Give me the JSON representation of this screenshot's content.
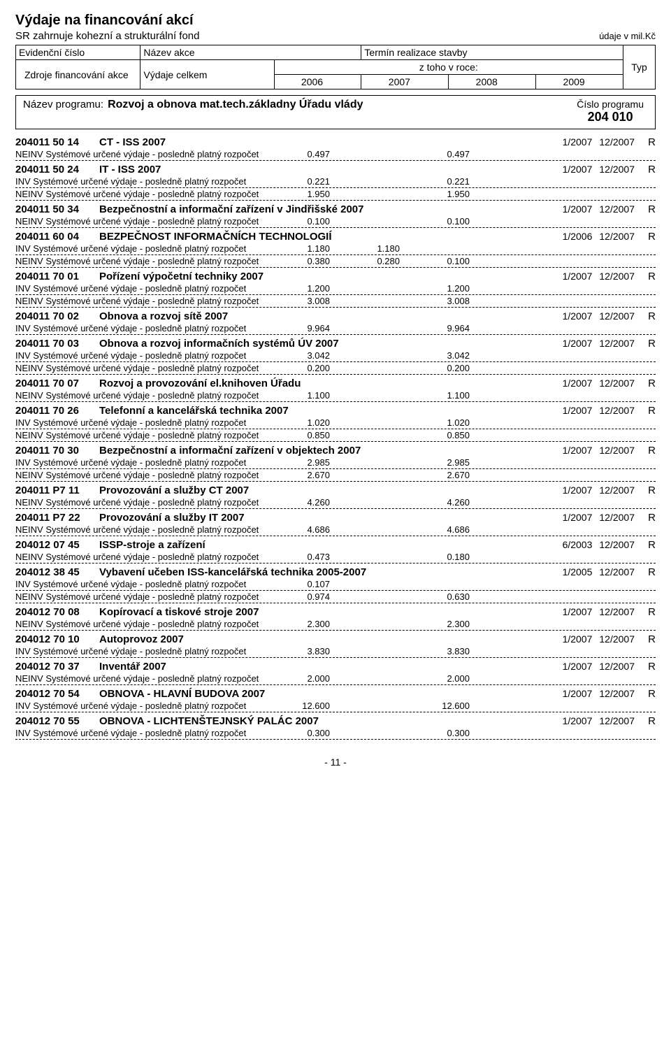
{
  "header": {
    "title": "Výdaje na  financování akcí",
    "subtitle": "SR zahrnuje kohezní a strukturální fond",
    "units": "údaje v mil.Kč",
    "columns": {
      "evidencni": "Evidenční číslo",
      "nazev_akce": "Název akce",
      "termin": "Termín realizace stavby",
      "typ": "Typ",
      "zdroje": "Zdroje financování akce",
      "vydaje_celkem": "Výdaje celkem",
      "ztoho": "z toho v roce:",
      "y2006": "2006",
      "y2007": "2007",
      "y2008": "2008",
      "y2009": "2009"
    }
  },
  "program": {
    "label": "Název programu:",
    "name": "Rozvoj a obnova mat.tech.základny Úřadu vlády",
    "cislo_label": "Číslo programu",
    "cislo": "204 010"
  },
  "labels": {
    "inv": "INV Systémové určené výdaje - posledně platný rozpočet",
    "neinv": "NEINV Systémové určené výdaje - posledně platný rozpočet"
  },
  "items": [
    {
      "code": "204011 50 14",
      "name": "CT - ISS 2007",
      "from": "1/2007",
      "to": "12/2007",
      "typ": "R",
      "lines": [
        {
          "label": "neinv",
          "celkem": "0.497",
          "y2006": "",
          "y2007": "0.497",
          "y2008": "",
          "y2009": ""
        }
      ]
    },
    {
      "code": "204011 50 24",
      "name": "IT - ISS 2007",
      "from": "1/2007",
      "to": "12/2007",
      "typ": "R",
      "lines": [
        {
          "label": "inv",
          "celkem": "0.221",
          "y2006": "",
          "y2007": "0.221",
          "y2008": "",
          "y2009": ""
        },
        {
          "label": "neinv",
          "celkem": "1.950",
          "y2006": "",
          "y2007": "1.950",
          "y2008": "",
          "y2009": ""
        }
      ]
    },
    {
      "code": "204011 50 34",
      "name": "Bezpečnostní a informační zařízení v Jindřišské 2007",
      "from": "1/2007",
      "to": "12/2007",
      "typ": "R",
      "lines": [
        {
          "label": "neinv",
          "celkem": "0.100",
          "y2006": "",
          "y2007": "0.100",
          "y2008": "",
          "y2009": ""
        }
      ]
    },
    {
      "code": "204011 60 04",
      "name": "BEZPEČNOST INFORMAČNÍCH TECHNOLOGIÍ",
      "from": "1/2006",
      "to": "12/2007",
      "typ": "R",
      "lines": [
        {
          "label": "inv",
          "celkem": "1.180",
          "y2006": "1.180",
          "y2007": "",
          "y2008": "",
          "y2009": ""
        },
        {
          "label": "neinv",
          "celkem": "0.380",
          "y2006": "0.280",
          "y2007": "0.100",
          "y2008": "",
          "y2009": ""
        }
      ]
    },
    {
      "code": "204011 70 01",
      "name": "Pořízení výpočetní techniky 2007",
      "from": "1/2007",
      "to": "12/2007",
      "typ": "R",
      "lines": [
        {
          "label": "inv",
          "celkem": "1.200",
          "y2006": "",
          "y2007": "1.200",
          "y2008": "",
          "y2009": ""
        },
        {
          "label": "neinv",
          "celkem": "3.008",
          "y2006": "",
          "y2007": "3.008",
          "y2008": "",
          "y2009": ""
        }
      ]
    },
    {
      "code": "204011 70 02",
      "name": "Obnova a rozvoj sítě 2007",
      "from": "1/2007",
      "to": "12/2007",
      "typ": "R",
      "lines": [
        {
          "label": "inv",
          "celkem": "9.964",
          "y2006": "",
          "y2007": "9.964",
          "y2008": "",
          "y2009": ""
        }
      ]
    },
    {
      "code": "204011 70 03",
      "name": "Obnova a rozvoj informačních systémů ÚV 2007",
      "from": "1/2007",
      "to": "12/2007",
      "typ": "R",
      "lines": [
        {
          "label": "inv",
          "celkem": "3.042",
          "y2006": "",
          "y2007": "3.042",
          "y2008": "",
          "y2009": ""
        },
        {
          "label": "neinv",
          "celkem": "0.200",
          "y2006": "",
          "y2007": "0.200",
          "y2008": "",
          "y2009": ""
        }
      ]
    },
    {
      "code": "204011 70 07",
      "name": "Rozvoj a provozování el.knihoven Úřadu",
      "from": "1/2007",
      "to": "12/2007",
      "typ": "R",
      "lines": [
        {
          "label": "neinv",
          "celkem": "1.100",
          "y2006": "",
          "y2007": "1.100",
          "y2008": "",
          "y2009": ""
        }
      ]
    },
    {
      "code": "204011 70 26",
      "name": "Telefonní a kancelářská technika 2007",
      "from": "1/2007",
      "to": "12/2007",
      "typ": "R",
      "lines": [
        {
          "label": "inv",
          "celkem": "1.020",
          "y2006": "",
          "y2007": "1.020",
          "y2008": "",
          "y2009": ""
        },
        {
          "label": "neinv",
          "celkem": "0.850",
          "y2006": "",
          "y2007": "0.850",
          "y2008": "",
          "y2009": ""
        }
      ]
    },
    {
      "code": "204011 70 30",
      "name": "Bezpečnostní a informační zařízení v objektech 2007",
      "from": "1/2007",
      "to": "12/2007",
      "typ": "R",
      "lines": [
        {
          "label": "inv",
          "celkem": "2.985",
          "y2006": "",
          "y2007": "2.985",
          "y2008": "",
          "y2009": ""
        },
        {
          "label": "neinv",
          "celkem": "2.670",
          "y2006": "",
          "y2007": "2.670",
          "y2008": "",
          "y2009": ""
        }
      ]
    },
    {
      "code": "204011 P7 11",
      "name": "Provozování a služby CT 2007",
      "from": "1/2007",
      "to": "12/2007",
      "typ": "R",
      "lines": [
        {
          "label": "neinv",
          "celkem": "4.260",
          "y2006": "",
          "y2007": "4.260",
          "y2008": "",
          "y2009": ""
        }
      ]
    },
    {
      "code": "204011 P7 22",
      "name": "Provozování a služby IT 2007",
      "from": "1/2007",
      "to": "12/2007",
      "typ": "R",
      "lines": [
        {
          "label": "neinv",
          "celkem": "4.686",
          "y2006": "",
          "y2007": "4.686",
          "y2008": "",
          "y2009": ""
        }
      ]
    },
    {
      "code": "204012 07 45",
      "name": "ISSP-stroje a zařízení",
      "from": "6/2003",
      "to": "12/2007",
      "typ": "R",
      "lines": [
        {
          "label": "neinv",
          "celkem": "0.473",
          "y2006": "",
          "y2007": "0.180",
          "y2008": "",
          "y2009": ""
        }
      ]
    },
    {
      "code": "204012 38 45",
      "name": "Vybavení učeben ISS-kancelářská technika 2005-2007",
      "from": "1/2005",
      "to": "12/2007",
      "typ": "R",
      "lines": [
        {
          "label": "inv",
          "celkem": "0.107",
          "y2006": "",
          "y2007": "",
          "y2008": "",
          "y2009": ""
        },
        {
          "label": "neinv",
          "celkem": "0.974",
          "y2006": "",
          "y2007": "0.630",
          "y2008": "",
          "y2009": ""
        }
      ]
    },
    {
      "code": "204012 70 08",
      "name": "Kopírovací a tiskové stroje 2007",
      "from": "1/2007",
      "to": "12/2007",
      "typ": "R",
      "lines": [
        {
          "label": "neinv",
          "celkem": "2.300",
          "y2006": "",
          "y2007": "2.300",
          "y2008": "",
          "y2009": ""
        }
      ]
    },
    {
      "code": "204012 70 10",
      "name": "Autoprovoz 2007",
      "from": "1/2007",
      "to": "12/2007",
      "typ": "R",
      "lines": [
        {
          "label": "inv",
          "celkem": "3.830",
          "y2006": "",
          "y2007": "3.830",
          "y2008": "",
          "y2009": ""
        }
      ]
    },
    {
      "code": "204012 70 37",
      "name": "Inventář 2007",
      "from": "1/2007",
      "to": "12/2007",
      "typ": "R",
      "lines": [
        {
          "label": "neinv",
          "celkem": "2.000",
          "y2006": "",
          "y2007": "2.000",
          "y2008": "",
          "y2009": ""
        }
      ]
    },
    {
      "code": "204012 70 54",
      "name": "OBNOVA - HLAVNÍ BUDOVA 2007",
      "from": "1/2007",
      "to": "12/2007",
      "typ": "R",
      "lines": [
        {
          "label": "inv",
          "celkem": "12.600",
          "y2006": "",
          "y2007": "12.600",
          "y2008": "",
          "y2009": ""
        }
      ]
    },
    {
      "code": "204012 70 55",
      "name": "OBNOVA - LICHTENŠTEJNSKÝ PALÁC 2007",
      "from": "1/2007",
      "to": "12/2007",
      "typ": "R",
      "lines": [
        {
          "label": "inv",
          "celkem": "0.300",
          "y2006": "",
          "y2007": "0.300",
          "y2008": "",
          "y2009": ""
        }
      ]
    }
  ],
  "page_number": "- 11 -"
}
